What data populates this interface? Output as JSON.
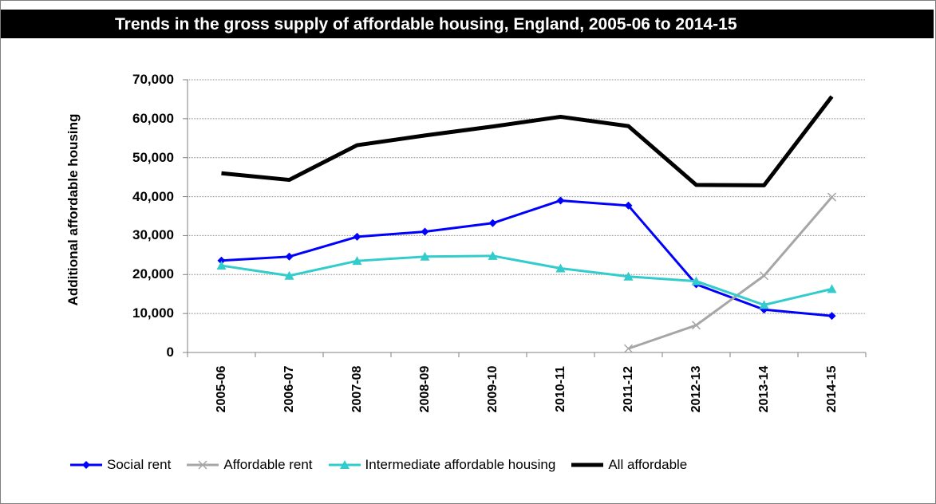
{
  "chart": {
    "title": "Trends in the gross supply of affordable housing, England, 2005-06 to 2014-15"
  },
  "chart_data": {
    "type": "line",
    "title": "Trends in the gross supply of affordable housing, England, 2005-06 to 2014-15",
    "xlabel": "",
    "ylabel": "Additional affordable housing",
    "ylim": [
      0,
      70000
    ],
    "yticks": [
      "0",
      "10,000",
      "20,000",
      "30,000",
      "40,000",
      "50,000",
      "60,000",
      "70,000"
    ],
    "grid": true,
    "legend_position": "bottom",
    "categories": [
      "2005-06",
      "2006-07",
      "2007-08",
      "2008-09",
      "2009-10",
      "2010-11",
      "2011-12",
      "2012-13",
      "2013-14",
      "2014-15"
    ],
    "series": [
      {
        "name": "Social rent",
        "color": "#0000ff",
        "marker": "diamond",
        "width": 3,
        "values": [
          23600,
          24600,
          29700,
          31000,
          33200,
          39000,
          37700,
          17500,
          11000,
          9400
        ]
      },
      {
        "name": "Affordable rent",
        "color": "#a6a6a6",
        "marker": "x",
        "width": 3,
        "values": [
          null,
          null,
          null,
          null,
          null,
          null,
          1000,
          7000,
          19700,
          39900
        ]
      },
      {
        "name": "Intermediate affordable housing",
        "color": "#33cccc",
        "marker": "triangle",
        "width": 3,
        "values": [
          22300,
          19700,
          23500,
          24600,
          24800,
          21600,
          19500,
          18300,
          12200,
          16300
        ]
      },
      {
        "name": "All affordable",
        "color": "#000000",
        "marker": "none",
        "width": 5,
        "values": [
          46000,
          44300,
          53200,
          55700,
          58000,
          60500,
          58100,
          43000,
          42900,
          65700
        ]
      }
    ]
  }
}
